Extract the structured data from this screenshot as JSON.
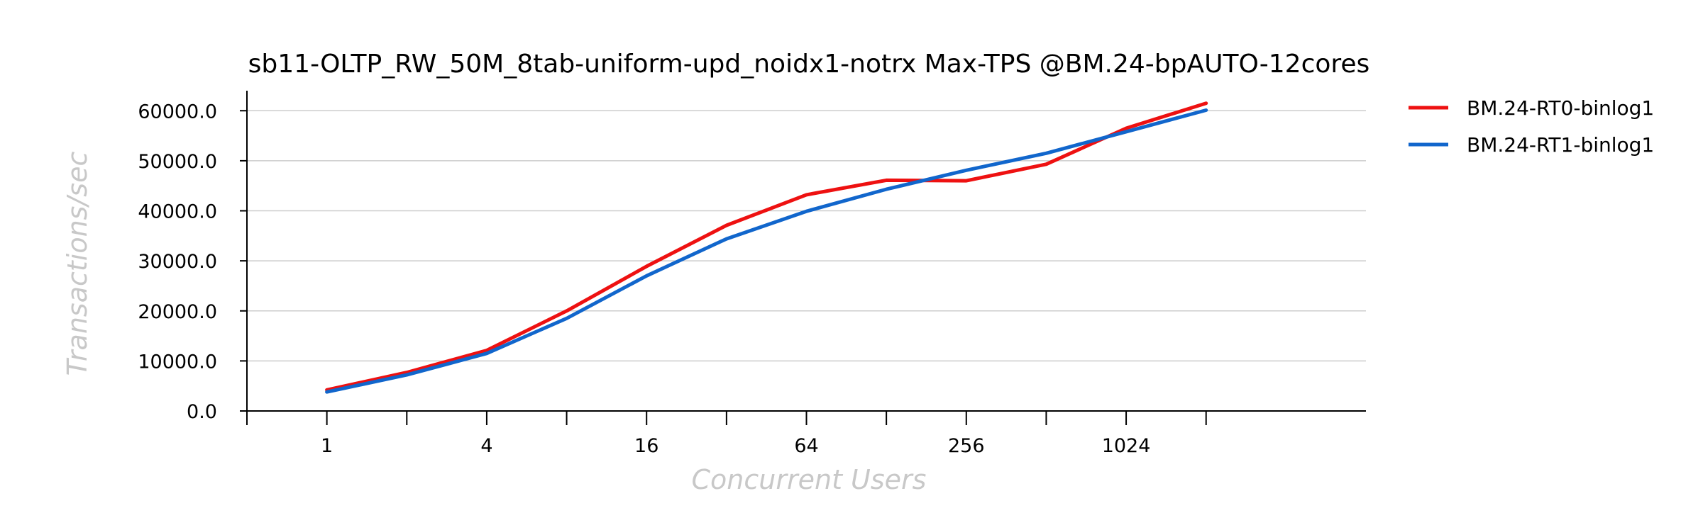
{
  "chart_data": {
    "type": "line",
    "title": "sb11-OLTP_RW_50M_8tab-uniform-upd_noidx1-notrx Max-TPS @BM.24-bpAUTO-12cores",
    "xlabel": "Concurrent Users",
    "ylabel": "Transactions/sec",
    "x_scale": "log2",
    "x": [
      1,
      2,
      4,
      8,
      16,
      32,
      64,
      128,
      256,
      512,
      1024,
      2048
    ],
    "x_tick_labels": [
      "1",
      "4",
      "16",
      "64",
      "256",
      "1024"
    ],
    "x_tick_values": [
      1,
      4,
      16,
      64,
      256,
      1024
    ],
    "xlim": [
      0.5,
      8192
    ],
    "ylim": [
      0,
      64000
    ],
    "y_ticks": [
      0,
      10000,
      20000,
      30000,
      40000,
      50000,
      60000
    ],
    "y_tick_labels": [
      "0.0",
      "10000.0",
      "20000.0",
      "30000.0",
      "40000.0",
      "50000.0",
      "60000.0"
    ],
    "grid": true,
    "legend_position": "outside-right-top",
    "series": [
      {
        "name": "BM.24-RT0-binlog1",
        "color": "#ee1111",
        "values": [
          4200,
          7700,
          12100,
          20000,
          28900,
          37100,
          43200,
          46100,
          46000,
          49300,
          56500,
          61500
        ]
      },
      {
        "name": "BM.24-RT1-binlog1",
        "color": "#1166cc",
        "values": [
          3800,
          7200,
          11500,
          18500,
          27000,
          34400,
          39900,
          44300,
          48100,
          51500,
          55800,
          60100
        ]
      }
    ]
  }
}
